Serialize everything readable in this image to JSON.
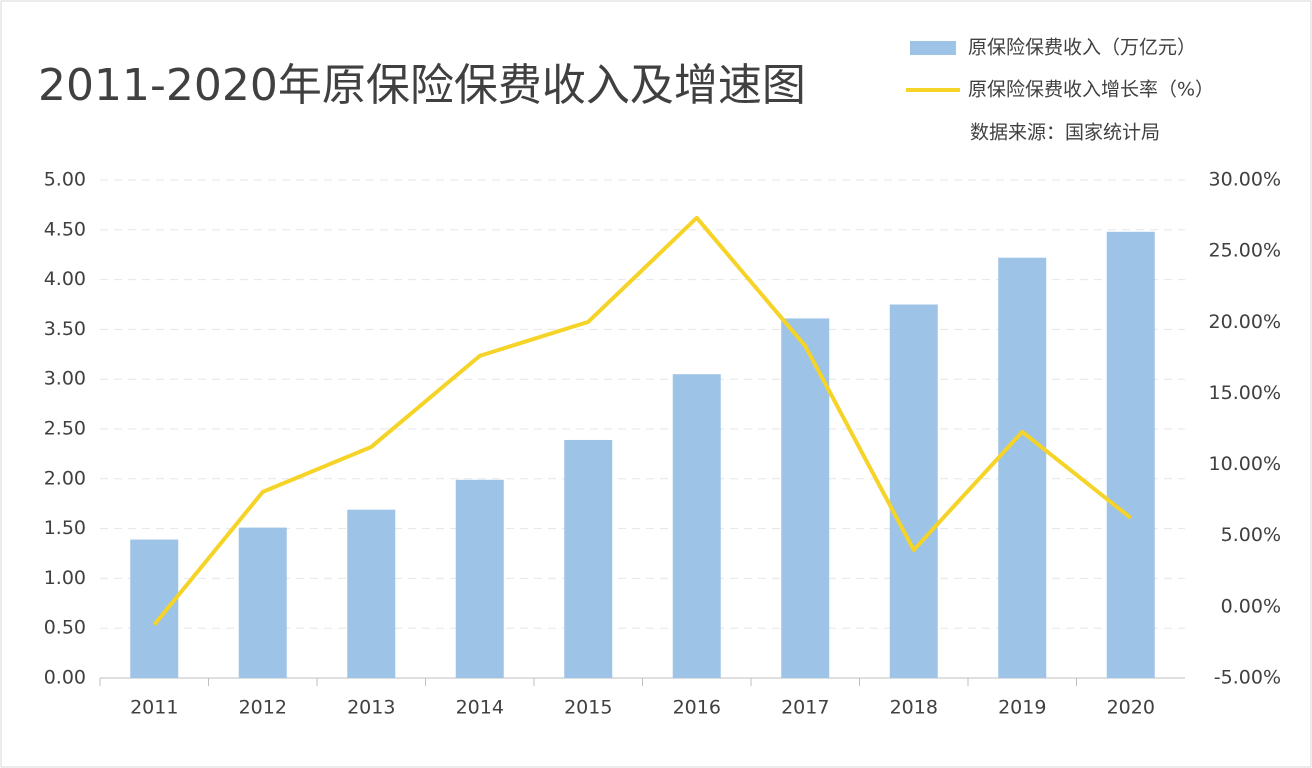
{
  "chart_data": {
    "type": "bar-line",
    "title": "2011-2020年原保险保费收入及增速图",
    "source": "数据来源：国家统计局",
    "categories": [
      "2011",
      "2012",
      "2013",
      "2014",
      "2015",
      "2016",
      "2017",
      "2018",
      "2019",
      "2020"
    ],
    "series": [
      {
        "name": "原保险保费收入（万亿元）",
        "type": "bar",
        "color": "#9dc3e6",
        "values": [
          1.39,
          1.51,
          1.69,
          1.99,
          2.39,
          3.05,
          3.61,
          3.75,
          4.22,
          4.48
        ]
      },
      {
        "name": "原保险保费收入增长率（%）",
        "type": "line",
        "axis": "y2",
        "color": "#f5d327",
        "values": [
          -1.26,
          8.08,
          11.24,
          17.64,
          20.03,
          27.34,
          18.34,
          4.0,
          12.3,
          6.25
        ]
      }
    ],
    "ylim": [
      0,
      5
    ],
    "yticks": [
      {
        "value": 0,
        "label": "0.00"
      },
      {
        "value": 0.5,
        "label": "0.50"
      },
      {
        "value": 1,
        "label": "1.00"
      },
      {
        "value": 1.5,
        "label": "1.50"
      },
      {
        "value": 2,
        "label": "2.00"
      },
      {
        "value": 2.5,
        "label": "2.50"
      },
      {
        "value": 3,
        "label": "3.00"
      },
      {
        "value": 3.5,
        "label": "3.50"
      },
      {
        "value": 4,
        "label": "4.00"
      },
      {
        "value": 4.5,
        "label": "4.50"
      },
      {
        "value": 5,
        "label": "5.00"
      }
    ],
    "y2lim": [
      -5,
      30
    ],
    "y2ticks": [
      {
        "value": -5,
        "label": "-5.00%"
      },
      {
        "value": 0,
        "label": "0.00%"
      },
      {
        "value": 5,
        "label": "5.00%"
      },
      {
        "value": 10,
        "label": "10.00%"
      },
      {
        "value": 15,
        "label": "15.00%"
      },
      {
        "value": 20,
        "label": "20.00%"
      },
      {
        "value": 25,
        "label": "25.00%"
      },
      {
        "value": 30,
        "label": "30.00%"
      }
    ],
    "grid": true,
    "legend": "top-right"
  }
}
